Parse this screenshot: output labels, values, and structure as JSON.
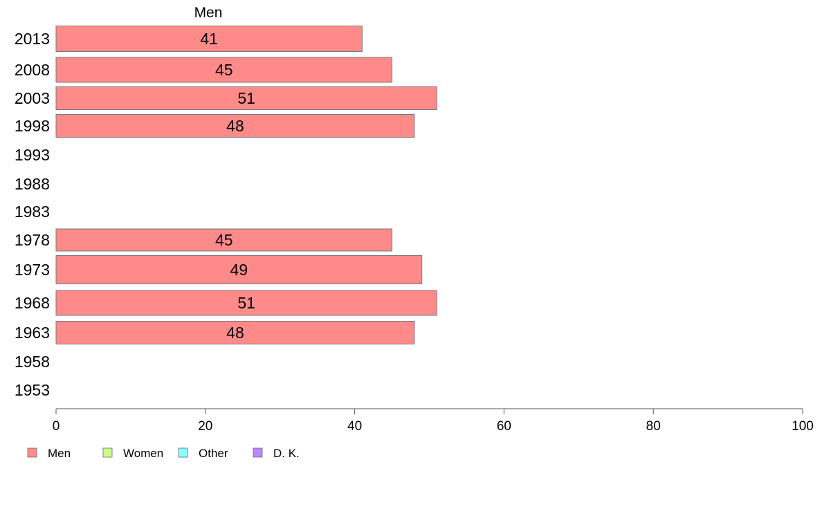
{
  "chart_data": {
    "type": "bar",
    "orientation": "horizontal",
    "series_title": "Men",
    "categories": [
      "2013",
      "2008",
      "2003",
      "1998",
      "1993",
      "1988",
      "1983",
      "1978",
      "1973",
      "1968",
      "1963",
      "1958",
      "1953"
    ],
    "series": [
      {
        "name": "Men",
        "values": [
          41,
          45,
          51,
          48,
          null,
          null,
          null,
          45,
          49,
          51,
          48,
          null,
          null
        ]
      }
    ],
    "data_labels": [
      "41",
      "45",
      "51",
      "48",
      "",
      "",
      "",
      "45",
      "49",
      "51",
      "48",
      "",
      ""
    ],
    "xlim": [
      0,
      100
    ],
    "xticks": [
      "0",
      "20",
      "40",
      "60",
      "80",
      "100"
    ],
    "grid": false,
    "legend": {
      "placement": "bottom-left",
      "items": [
        {
          "label": "Men",
          "color": "#ff8a8a"
        },
        {
          "label": "Women",
          "color": "#ccff88"
        },
        {
          "label": "Other",
          "color": "#88ffff"
        },
        {
          "label": "D. K.",
          "color": "#bb88ff"
        }
      ]
    },
    "colors": {
      "bar_fill": "#ff8a8a",
      "bar_stroke": "#7a7a7a",
      "axis": "#555555"
    }
  }
}
